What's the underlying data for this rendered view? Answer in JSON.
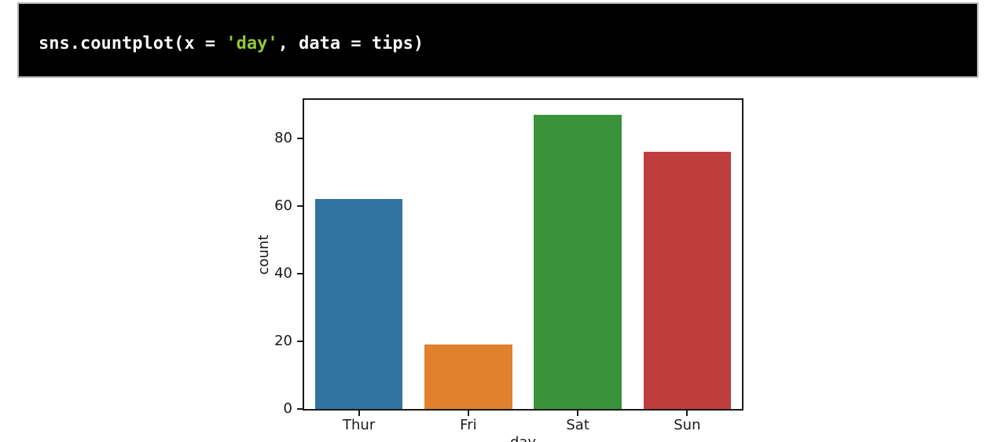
{
  "code_cell": {
    "tokens": [
      {
        "text": "sns.countplot(x = ",
        "type": "plain"
      },
      {
        "text": "'day'",
        "type": "string"
      },
      {
        "text": ", data = tips)",
        "type": "plain"
      }
    ]
  },
  "theme": {
    "page_bg": "#ffffff",
    "code_bg": "#000000",
    "code_border": "#b5b5b5",
    "code_plain_color": "#f5f5f5",
    "code_string_color": "#93c939",
    "axis_color": "#1a1a1a"
  },
  "chart_data": {
    "type": "bar",
    "title": "",
    "categories": [
      "Thur",
      "Fri",
      "Sat",
      "Sun"
    ],
    "values": [
      62,
      19,
      87,
      76
    ],
    "bar_colors": [
      "#3274a1",
      "#e1812c",
      "#3a923a",
      "#c03d3e"
    ],
    "xlabel": "day",
    "ylabel": "count",
    "yticks": [
      0,
      20,
      40,
      60,
      80
    ],
    "ylim": [
      0,
      91.35
    ],
    "bar_width_fraction": 0.8,
    "grid": false,
    "legend": "none"
  }
}
